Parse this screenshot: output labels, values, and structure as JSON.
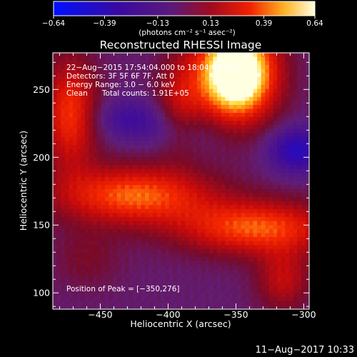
{
  "chart_data": {
    "type": "heatmap",
    "title": "Reconstructed RHESSI Image",
    "xlabel": "Heliocentric X (arcsec)",
    "ylabel": "Heliocentric Y (arcsec)",
    "xlim": [
      -485,
      -296
    ],
    "ylim": [
      88,
      277
    ],
    "xticks": [
      -450,
      -400,
      -350,
      -300
    ],
    "yticks": [
      100,
      150,
      200,
      250
    ],
    "xticklabels": [
      "−450",
      "−400",
      "−350",
      "−300"
    ],
    "yticklabels": [
      "100",
      "150",
      "200",
      "250"
    ],
    "colorbar": {
      "range": [
        -0.64,
        0.64
      ],
      "ticks": [
        -0.64,
        -0.39,
        -0.13,
        0.13,
        0.39,
        0.64
      ],
      "ticklabels": [
        "−0.64",
        "−0.39",
        "−0.13",
        "0.13",
        "0.39",
        "0.64"
      ],
      "units_label": "(photons cm⁻² s⁻¹ asec⁻²)"
    },
    "annotations": [
      "22−Aug−2015 17:54:04.000 to 18:04:04.000",
      "Detectors: 3F 5F 6F 7F, Att 0",
      "Energy Range: 3.0 − 6.0 keV",
      "Clean      Total counts: 1.91E+05"
    ],
    "peak_label": "Position of Peak = [−350,276]",
    "peak": [
      -350,
      276
    ],
    "blobs": [
      {
        "x": -350,
        "y": 262,
        "sx": 20,
        "sy": 24,
        "amp": 1.05
      },
      {
        "x": -472,
        "y": 232,
        "sx": 14,
        "sy": 28,
        "amp": 0.46
      },
      {
        "x": -425,
        "y": 172,
        "sx": 40,
        "sy": 15,
        "amp": 0.52
      },
      {
        "x": -335,
        "y": 148,
        "sx": 40,
        "sy": 14,
        "amp": 0.5
      },
      {
        "x": -392,
        "y": 240,
        "sx": 12,
        "sy": 24,
        "amp": 0.26
      },
      {
        "x": -315,
        "y": 110,
        "sx": 14,
        "sy": 16,
        "amp": 0.28
      },
      {
        "x": -460,
        "y": 125,
        "sx": 18,
        "sy": 16,
        "amp": 0.12
      },
      {
        "x": -400,
        "y": 220,
        "sx": 28,
        "sy": 10,
        "amp": -0.12
      },
      {
        "x": -305,
        "y": 205,
        "sx": 15,
        "sy": 12,
        "amp": -0.35
      },
      {
        "x": -430,
        "y": 230,
        "sx": 20,
        "sy": 10,
        "amp": -0.18
      }
    ],
    "baseline": -0.1
  },
  "footer": {
    "timestamp": "11−Aug−2017 10:33"
  }
}
